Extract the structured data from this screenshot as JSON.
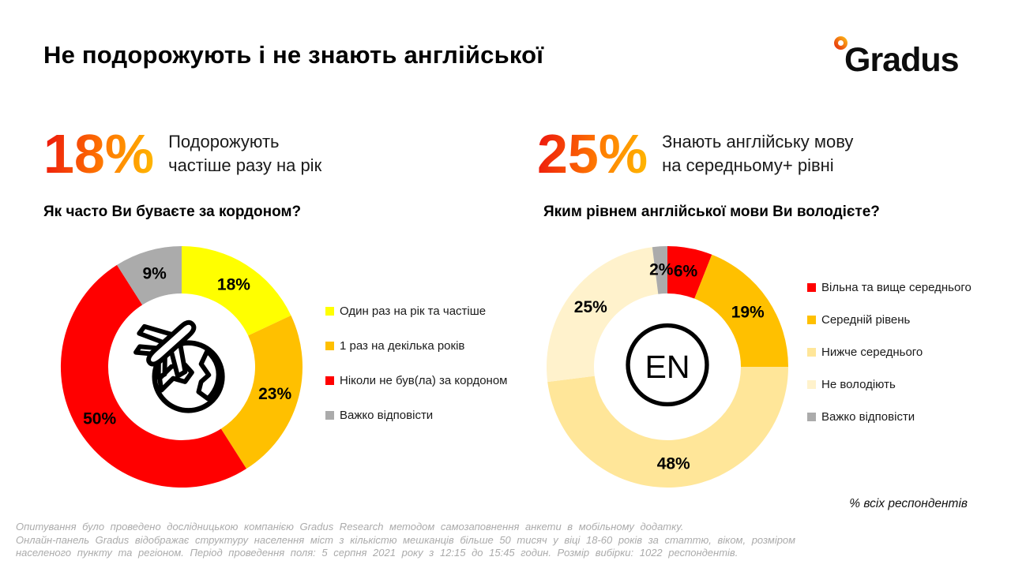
{
  "header": {
    "title": "Не подорожують і не знають англійської",
    "logo_text": "Gradus",
    "logo_ring_colors": [
      "#e8380d",
      "#fbae17"
    ]
  },
  "stats": [
    {
      "value": "18%",
      "label": "Подорожують\nчастіше разу на рік"
    },
    {
      "value": "25%",
      "label": "Знають англійську мову\nна середньому+ рівні"
    }
  ],
  "chart_data": [
    {
      "type": "pie",
      "subtype": "donut",
      "title": "Як часто Ви буваєте за кордоном?",
      "categories": [
        "Один раз на рік та частіше",
        "1 раз на декілька років",
        "Ніколи не був(ла) за кордоном",
        "Важко відповісти"
      ],
      "values": [
        18,
        23,
        50,
        9
      ],
      "labels": [
        "18%",
        "23%",
        "50%",
        "9%"
      ],
      "colors": [
        "#FFFF00",
        "#FFC000",
        "#FF0000",
        "#ABABAB"
      ],
      "start_angle_deg": 0,
      "direction": "clockwise",
      "legend_position": "right",
      "center_icon": "airplane-globe-icon",
      "unit": "%"
    },
    {
      "type": "pie",
      "subtype": "donut",
      "title": "Яким рівнем англійської мови Ви володієте?",
      "categories": [
        "Вільна та вище середнього",
        "Середній рівень",
        "Нижче середнього",
        "Не володіють",
        "Важко відповісти"
      ],
      "values": [
        6,
        19,
        48,
        25,
        2
      ],
      "labels": [
        "6%",
        "19%",
        "48%",
        "25%",
        "2%"
      ],
      "colors": [
        "#FF0000",
        "#FFC000",
        "#FFE699",
        "#FFF2CC",
        "#ABABAB"
      ],
      "start_angle_deg": 0,
      "direction": "clockwise",
      "legend_position": "right",
      "center_icon": "en-circle-icon",
      "center_icon_text": "EN",
      "unit": "%"
    }
  ],
  "respondents_note": "% всіх респондентів",
  "footer": {
    "lines": [
      "Опитування було проведено дослідницькою компанією Gradus Research методом самозаповнення анкети в мобільному додатку.",
      "Онлайн-панель Gradus відображає структуру населення міст з кількістю мешканців більше 50 тисяч у віці 18-60 років за статтю, віком, розміром",
      "населеного пункту та регіоном. Період проведення поля: 5 серпня 2021 року з 12:15 до 15:45 годин. Розмір вибірки: 1022 респондентів."
    ]
  }
}
